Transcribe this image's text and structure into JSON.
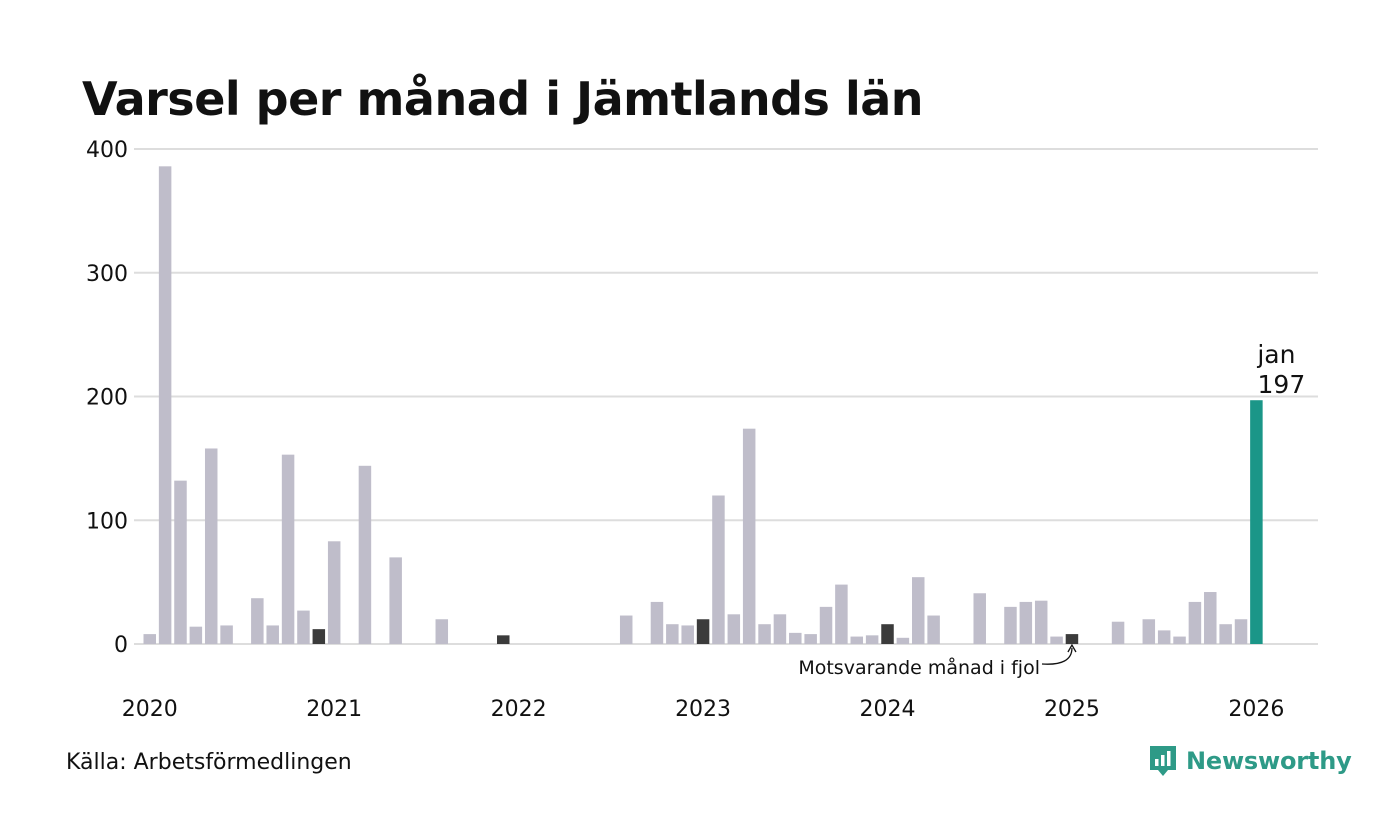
{
  "title": "Varsel per månad i Jämtlands län",
  "source": "Källa: Arbetsförmedlingen",
  "brand": {
    "name": "Newsworthy",
    "icon": "newsworthy-logo-icon"
  },
  "colors": {
    "bar": "#bfbdca",
    "comparison": "#3b3b3b",
    "highlight": "#1b9688",
    "grid": "#dddddd"
  },
  "chart_data": {
    "type": "bar",
    "title": "Varsel per månad i Jämtlands län",
    "xlabel": "",
    "ylabel": "",
    "ylim": [
      0,
      400
    ],
    "yticks": [
      "0",
      "100",
      "200",
      "300",
      "400"
    ],
    "xticks": [
      "2020",
      "2021",
      "2022",
      "2023",
      "2024",
      "2025",
      "2026"
    ],
    "start": "2020-01",
    "values": [
      8,
      386,
      132,
      14,
      158,
      15,
      0,
      37,
      15,
      153,
      27,
      12,
      83,
      0,
      144,
      0,
      70,
      0,
      0,
      20,
      0,
      0,
      0,
      7,
      0,
      0,
      0,
      0,
      0,
      0,
      0,
      23,
      0,
      34,
      16,
      15,
      20,
      120,
      24,
      174,
      16,
      24,
      9,
      8,
      30,
      48,
      6,
      7,
      16,
      5,
      54,
      23,
      0,
      0,
      41,
      0,
      30,
      34,
      35,
      6,
      8,
      0,
      0,
      18,
      0,
      20,
      11,
      6,
      34,
      42,
      16,
      20,
      197
    ],
    "comparison_indices": [
      11,
      23,
      36,
      48,
      60
    ],
    "highlight_index": 72,
    "highlight_label": {
      "month": "jan",
      "value": "197"
    },
    "annotation": "Motsvarande månad i fjol"
  }
}
